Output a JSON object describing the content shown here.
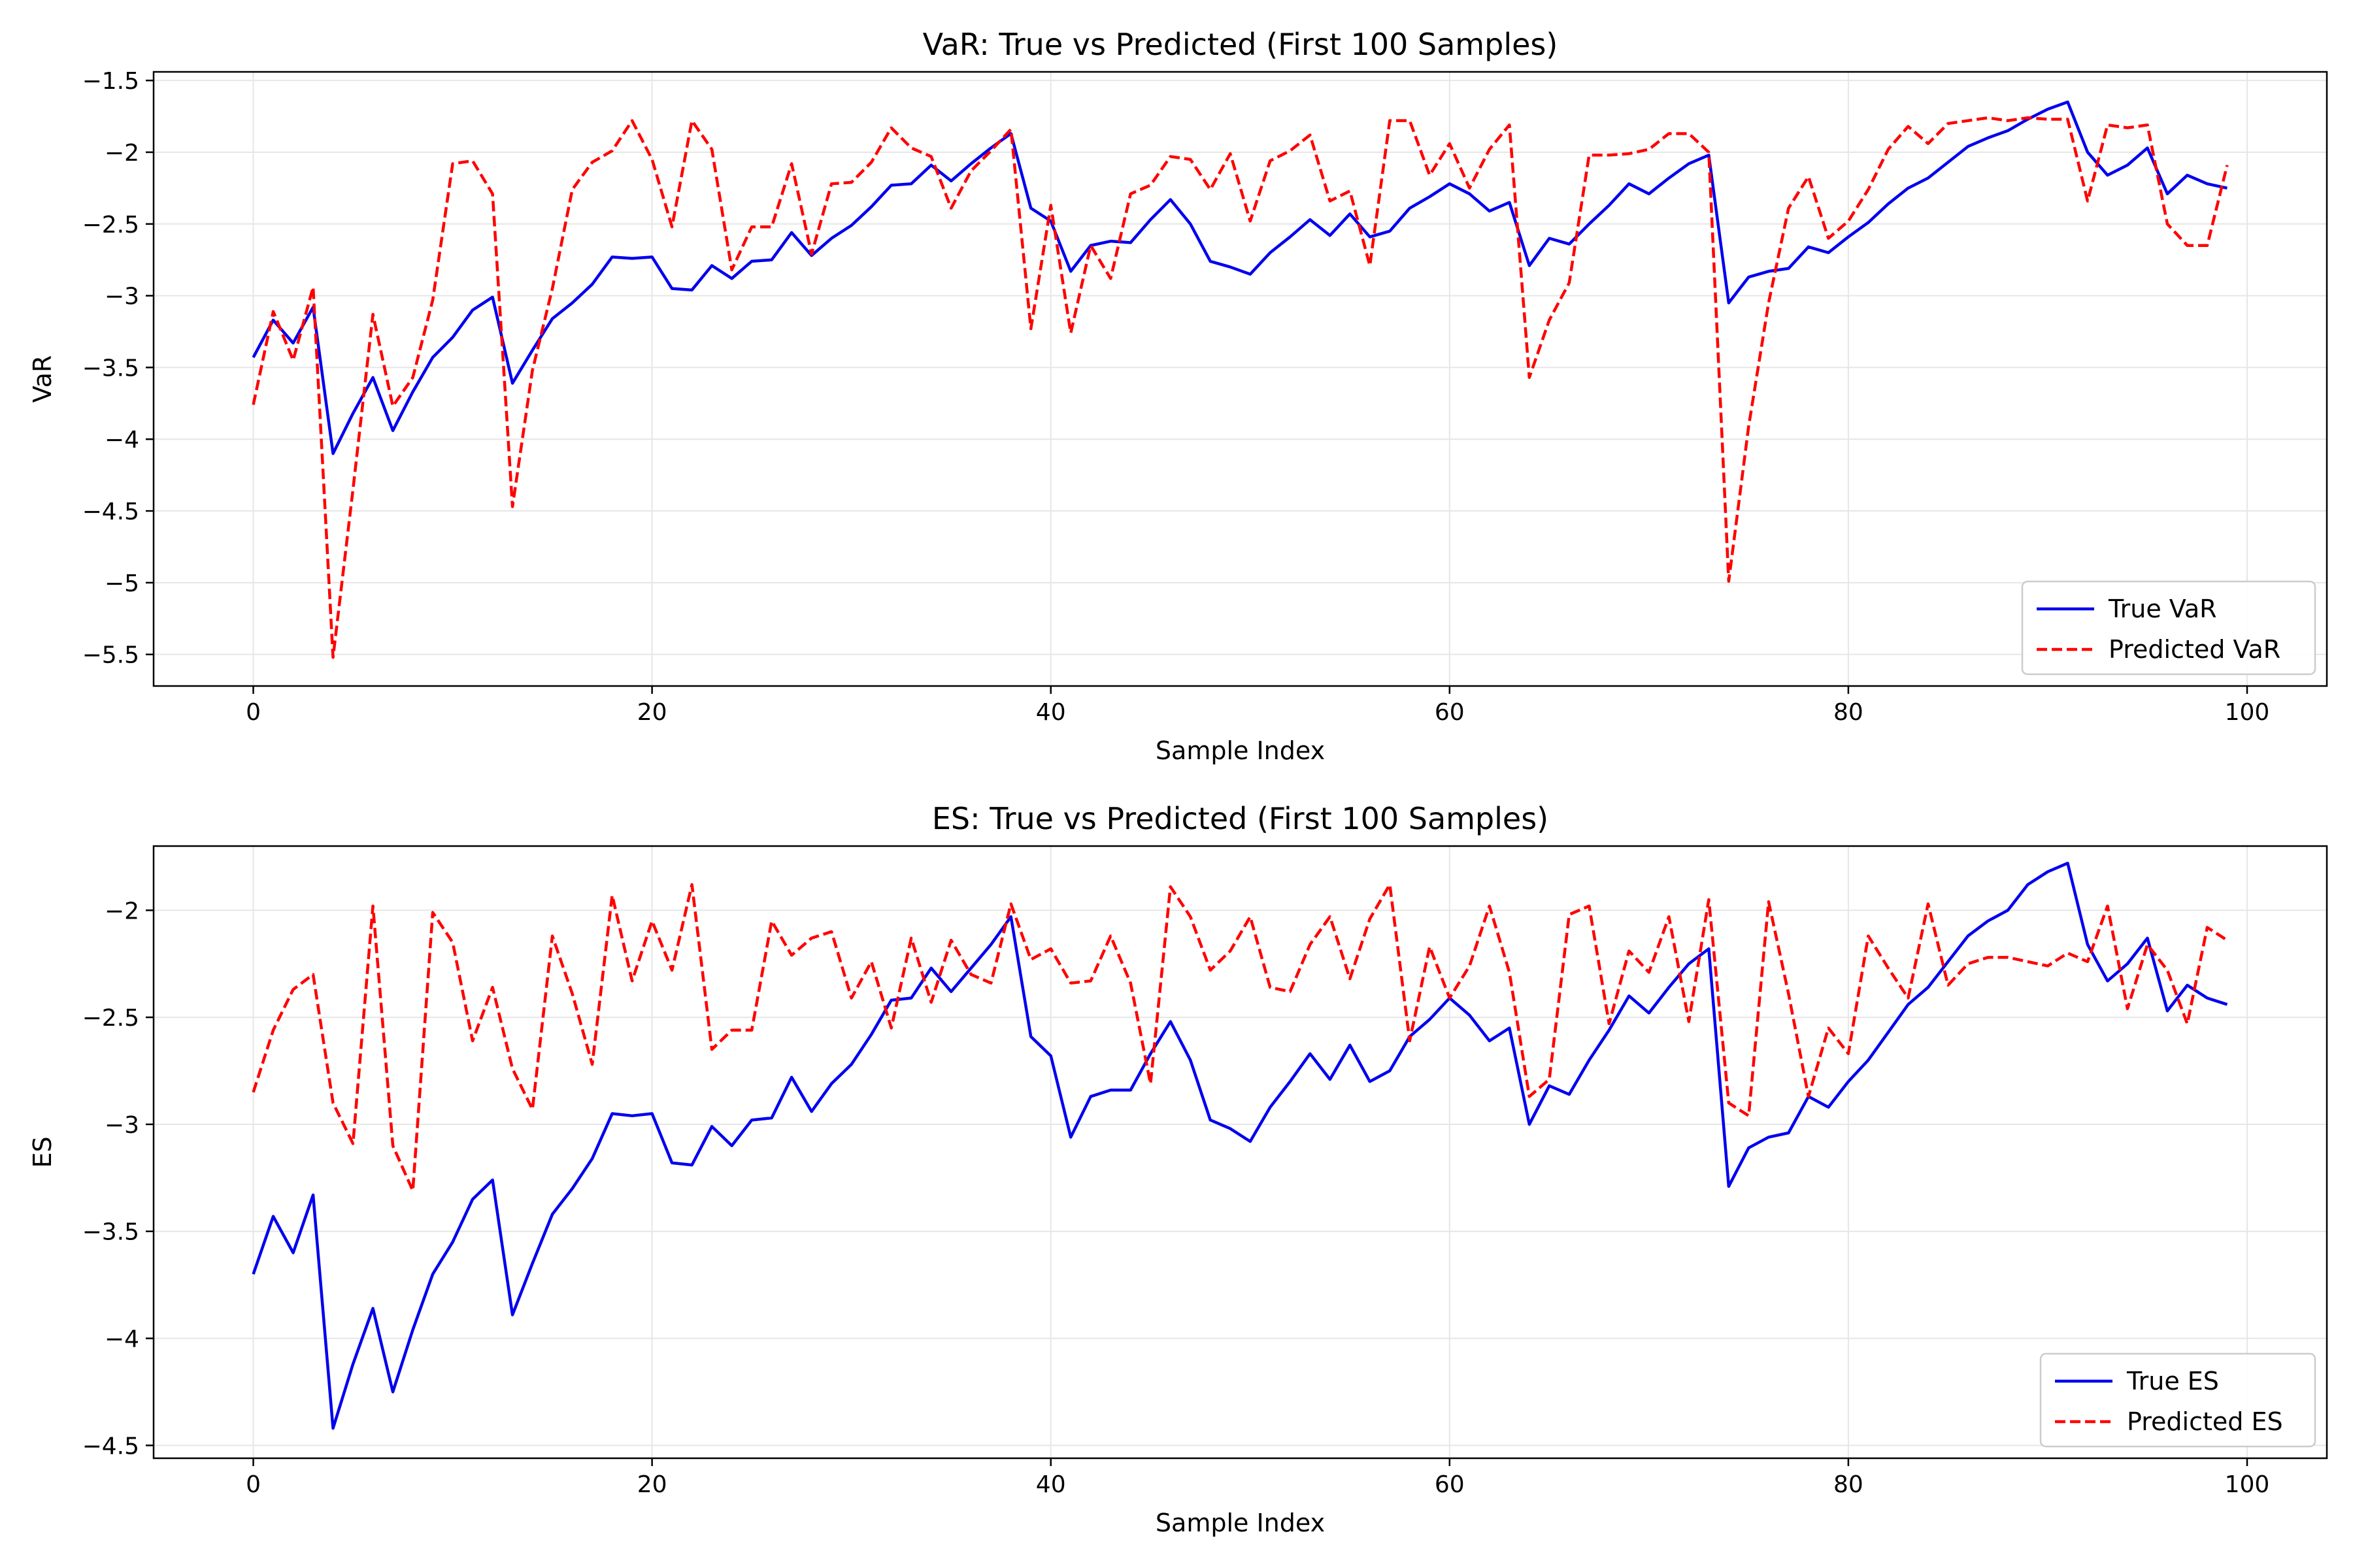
{
  "chart_data": [
    {
      "type": "line",
      "title": "VaR: True vs Predicted (First 100 Samples)",
      "xlabel": "Sample Index",
      "ylabel": "VaR",
      "xlim": [
        -5,
        104
      ],
      "ylim": [
        -5.72,
        -1.44
      ],
      "xticks": [
        0,
        20,
        40,
        60,
        80,
        100
      ],
      "yticks": [
        -5.5,
        -5.0,
        -4.5,
        -4.0,
        -3.5,
        -3.0,
        -2.5,
        -2.0,
        -1.5
      ],
      "grid": true,
      "legend_position": "bottom-right",
      "series": [
        {
          "name": "True VaR",
          "color": "#0000ee",
          "style": "solid",
          "values": [
            -3.43,
            -3.17,
            -3.33,
            -3.08,
            -4.1,
            -3.82,
            -3.57,
            -3.94,
            -3.67,
            -3.43,
            -3.29,
            -3.1,
            -3.01,
            -3.61,
            -3.38,
            -3.16,
            -3.05,
            -2.92,
            -2.73,
            -2.74,
            -2.73,
            -2.95,
            -2.96,
            -2.79,
            -2.88,
            -2.76,
            -2.75,
            -2.56,
            -2.72,
            -2.6,
            -2.51,
            -2.38,
            -2.23,
            -2.22,
            -2.09,
            -2.2,
            -2.08,
            -1.97,
            -1.87,
            -2.39,
            -2.48,
            -2.83,
            -2.65,
            -2.62,
            -2.63,
            -2.47,
            -2.33,
            -2.5,
            -2.76,
            -2.8,
            -2.85,
            -2.7,
            -2.59,
            -2.47,
            -2.58,
            -2.43,
            -2.59,
            -2.55,
            -2.39,
            -2.31,
            -2.22,
            -2.29,
            -2.41,
            -2.35,
            -2.79,
            -2.6,
            -2.64,
            -2.5,
            -2.37,
            -2.22,
            -2.29,
            -2.18,
            -2.08,
            -2.02,
            -3.05,
            -2.87,
            -2.83,
            -2.81,
            -2.66,
            -2.7,
            -2.59,
            -2.49,
            -2.36,
            -2.25,
            -2.18,
            -2.07,
            -1.96,
            -1.9,
            -1.85,
            -1.77,
            -1.7,
            -1.65,
            -2.0,
            -2.16,
            -2.09,
            -1.97,
            -2.29,
            -2.16,
            -2.22,
            -2.25
          ]
        },
        {
          "name": "Predicted VaR",
          "color": "#ff0000",
          "style": "dashed",
          "values": [
            -3.76,
            -3.11,
            -3.45,
            -2.94,
            -5.52,
            -4.35,
            -3.13,
            -3.77,
            -3.57,
            -3.03,
            -2.08,
            -2.06,
            -2.29,
            -4.47,
            -3.52,
            -2.95,
            -2.26,
            -2.07,
            -1.99,
            -1.78,
            -2.05,
            -2.52,
            -1.78,
            -1.98,
            -2.82,
            -2.52,
            -2.52,
            -2.08,
            -2.71,
            -2.22,
            -2.21,
            -2.07,
            -1.83,
            -1.97,
            -2.03,
            -2.39,
            -2.13,
            -1.99,
            -1.84,
            -3.23,
            -2.37,
            -3.26,
            -2.65,
            -2.88,
            -2.29,
            -2.23,
            -2.03,
            -2.05,
            -2.26,
            -2.01,
            -2.48,
            -2.06,
            -1.99,
            -1.88,
            -2.34,
            -2.27,
            -2.79,
            -1.78,
            -1.78,
            -2.16,
            -1.94,
            -2.25,
            -1.98,
            -1.81,
            -3.57,
            -3.17,
            -2.91,
            -2.02,
            -2.02,
            -2.01,
            -1.98,
            -1.87,
            -1.87,
            -2.0,
            -4.99,
            -3.91,
            -3.05,
            -2.39,
            -2.17,
            -2.6,
            -2.48,
            -2.26,
            -1.98,
            -1.82,
            -1.94,
            -1.8,
            -1.78,
            -1.76,
            -1.78,
            -1.76,
            -1.77,
            -1.77,
            -2.34,
            -1.81,
            -1.83,
            -1.81,
            -2.5,
            -2.65,
            -2.65,
            -2.09
          ]
        }
      ]
    },
    {
      "type": "line",
      "title": "ES: True vs Predicted (First 100 Samples)",
      "xlabel": "Sample Index",
      "ylabel": "ES",
      "xlim": [
        -5,
        104
      ],
      "ylim": [
        -4.56,
        -1.7
      ],
      "xticks": [
        0,
        20,
        40,
        60,
        80,
        100
      ],
      "yticks": [
        -4.5,
        -4.0,
        -3.5,
        -3.0,
        -2.5,
        -2.0
      ],
      "grid": true,
      "legend_position": "bottom-right",
      "series": [
        {
          "name": "True ES",
          "color": "#0000ee",
          "style": "solid",
          "values": [
            -3.7,
            -3.43,
            -3.6,
            -3.33,
            -4.42,
            -4.12,
            -3.86,
            -4.25,
            -3.96,
            -3.7,
            -3.55,
            -3.35,
            -3.26,
            -3.89,
            -3.65,
            -3.42,
            -3.3,
            -3.16,
            -2.95,
            -2.96,
            -2.95,
            -3.18,
            -3.19,
            -3.01,
            -3.1,
            -2.98,
            -2.97,
            -2.78,
            -2.94,
            -2.81,
            -2.72,
            -2.58,
            -2.42,
            -2.41,
            -2.27,
            -2.38,
            -2.27,
            -2.16,
            -2.03,
            -2.59,
            -2.68,
            -3.06,
            -2.87,
            -2.84,
            -2.84,
            -2.67,
            -2.52,
            -2.7,
            -2.98,
            -3.02,
            -3.08,
            -2.92,
            -2.8,
            -2.67,
            -2.79,
            -2.63,
            -2.8,
            -2.75,
            -2.59,
            -2.51,
            -2.41,
            -2.49,
            -2.61,
            -2.55,
            -3.0,
            -2.82,
            -2.86,
            -2.7,
            -2.56,
            -2.4,
            -2.48,
            -2.36,
            -2.25,
            -2.18,
            -3.29,
            -3.11,
            -3.06,
            -3.04,
            -2.87,
            -2.92,
            -2.8,
            -2.7,
            -2.57,
            -2.44,
            -2.36,
            -2.24,
            -2.12,
            -2.05,
            -2.0,
            -1.88,
            -1.82,
            -1.78,
            -2.16,
            -2.33,
            -2.25,
            -2.13,
            -2.47,
            -2.35,
            -2.41,
            -2.44
          ]
        },
        {
          "name": "Predicted ES",
          "color": "#ff0000",
          "style": "dashed",
          "values": [
            -2.85,
            -2.56,
            -2.37,
            -2.3,
            -2.9,
            -3.09,
            -1.98,
            -3.1,
            -3.31,
            -2.01,
            -2.15,
            -2.61,
            -2.36,
            -2.74,
            -2.93,
            -2.12,
            -2.39,
            -2.72,
            -1.93,
            -2.33,
            -2.05,
            -2.28,
            -1.88,
            -2.65,
            -2.56,
            -2.56,
            -2.05,
            -2.21,
            -2.13,
            -2.1,
            -2.41,
            -2.24,
            -2.55,
            -2.13,
            -2.43,
            -2.14,
            -2.3,
            -2.34,
            -1.97,
            -2.23,
            -2.18,
            -2.34,
            -2.33,
            -2.12,
            -2.34,
            -2.81,
            -1.89,
            -2.03,
            -2.28,
            -2.19,
            -2.03,
            -2.36,
            -2.38,
            -2.16,
            -2.03,
            -2.32,
            -2.04,
            -1.88,
            -2.61,
            -2.17,
            -2.41,
            -2.26,
            -1.98,
            -2.29,
            -2.87,
            -2.79,
            -2.02,
            -1.98,
            -2.53,
            -2.19,
            -2.29,
            -2.03,
            -2.52,
            -1.95,
            -2.9,
            -2.96,
            -1.96,
            -2.39,
            -2.87,
            -2.55,
            -2.67,
            -2.12,
            -2.27,
            -2.41,
            -1.97,
            -2.35,
            -2.25,
            -2.22,
            -2.22,
            -2.24,
            -2.26,
            -2.2,
            -2.24,
            -1.98,
            -2.46,
            -2.16,
            -2.28,
            -2.53,
            -2.08,
            -2.14
          ]
        }
      ]
    }
  ]
}
